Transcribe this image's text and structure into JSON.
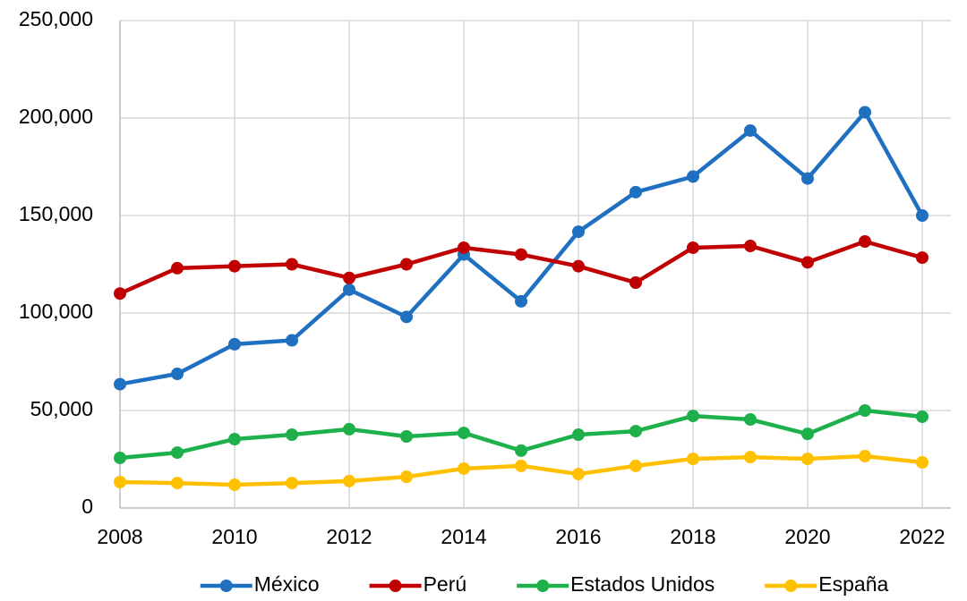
{
  "chart_data": {
    "type": "line",
    "x": [
      2008,
      2009,
      2010,
      2011,
      2012,
      2013,
      2014,
      2015,
      2016,
      2017,
      2018,
      2019,
      2020,
      2021,
      2022
    ],
    "series": [
      {
        "name": "México",
        "color": "#1f70c1",
        "values": [
          63500,
          68800,
          84000,
          86000,
          112000,
          98000,
          130000,
          106000,
          141700,
          162000,
          170000,
          193600,
          169000,
          203000,
          150000
        ]
      },
      {
        "name": "Perú",
        "color": "#c00000",
        "values": [
          110000,
          123000,
          124000,
          125000,
          118000,
          125000,
          133500,
          130000,
          124000,
          115600,
          133500,
          134400,
          126000,
          136700,
          128400
        ]
      },
      {
        "name": "Estados Unidos",
        "color": "#1db04b",
        "values": [
          25700,
          28400,
          35300,
          37600,
          40400,
          36700,
          38500,
          29400,
          37600,
          39400,
          47200,
          45400,
          38000,
          50000,
          46800
        ]
      },
      {
        "name": "España",
        "color": "#ffc000",
        "values": [
          13300,
          12800,
          11900,
          12800,
          13800,
          16000,
          20200,
          21600,
          17400,
          21600,
          25200,
          26100,
          25200,
          26600,
          23400
        ]
      }
    ],
    "xlim": [
      2008,
      2022.5
    ],
    "xticks": [
      2008,
      2010,
      2012,
      2014,
      2016,
      2018,
      2020,
      2022
    ],
    "ylim": [
      0,
      250000
    ],
    "yticks": [
      0,
      {
        "value": 50000,
        "label": "50,000"
      },
      {
        "value": 100000,
        "label": "100,000"
      },
      {
        "value": 150000,
        "label": "150,000"
      },
      {
        "value": 200000,
        "label": "200,000"
      },
      {
        "value": 250000,
        "label": "250,000"
      }
    ],
    "grid": true,
    "legend": "bottom"
  }
}
